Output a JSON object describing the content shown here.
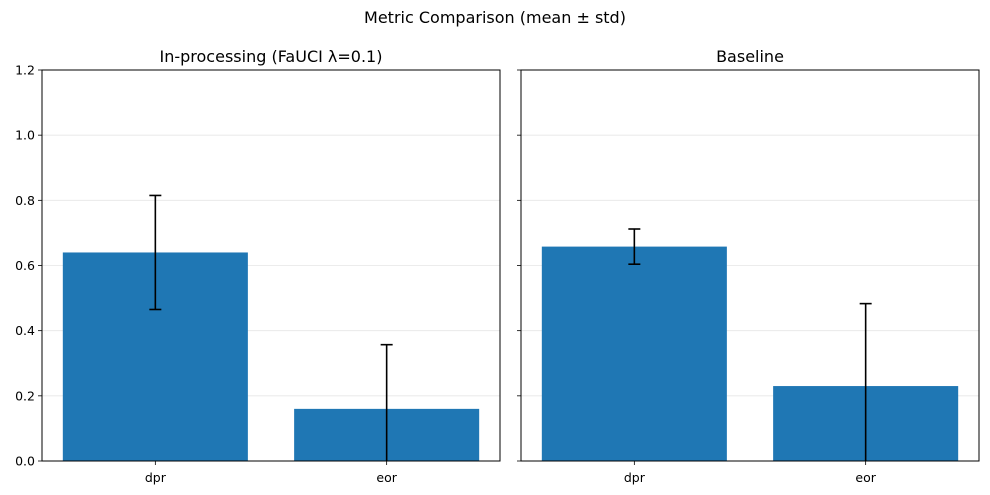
{
  "figure": {
    "title": "Metric Comparison (mean ± std)"
  },
  "chart_data": [
    {
      "type": "bar",
      "title": "In-processing (FaUCI λ=0.1)",
      "categories": [
        "dpr",
        "eor"
      ],
      "values": [
        0.64,
        0.16
      ],
      "errors": [
        0.175,
        0.197
      ],
      "ylim": [
        0,
        1.2
      ],
      "yticks": [
        0.0,
        0.2,
        0.4,
        0.6,
        0.8,
        1.0,
        1.2
      ],
      "ytick_labels": [
        "0.0",
        "0.2",
        "0.4",
        "0.6",
        "0.8",
        "1.0",
        "1.2"
      ],
      "y_grid": true,
      "show_yticklabels": true,
      "bar_color": "#1f77b4"
    },
    {
      "type": "bar",
      "title": "Baseline",
      "categories": [
        "dpr",
        "eor"
      ],
      "values": [
        0.658,
        0.23
      ],
      "errors": [
        0.054,
        0.253
      ],
      "ylim": [
        0,
        1.2
      ],
      "yticks": [
        0.0,
        0.2,
        0.4,
        0.6,
        0.8,
        1.0,
        1.2
      ],
      "ytick_labels": [
        "0.0",
        "0.2",
        "0.4",
        "0.6",
        "0.8",
        "1.0",
        "1.2"
      ],
      "y_grid": true,
      "show_yticklabels": false,
      "bar_color": "#1f77b4"
    }
  ]
}
